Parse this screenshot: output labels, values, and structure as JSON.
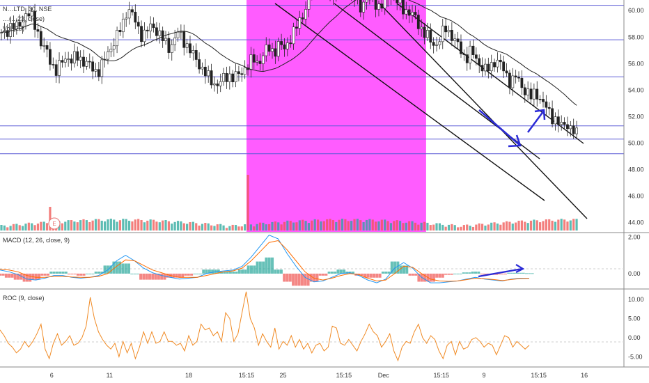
{
  "chart_data": [
    {
      "type": "candlestick",
      "pane": "price",
      "symbol_label": "N…LTD, 30, NSE",
      "indicator_labels": [
        "…(…23, close)",
        "Vol (20)"
      ],
      "y_ticks": [
        "60.00",
        "58.00",
        "56.00",
        "54.00",
        "52.00",
        "50.00",
        "48.00",
        "46.00",
        "44.00"
      ],
      "ylim": [
        43.3,
        60.8
      ],
      "horizontal_levels": [
        60.4,
        57.8,
        55.0,
        51.3,
        50.3,
        49.2
      ],
      "highlight_region": {
        "from_index": 81,
        "to_index": 140,
        "color": "#ff40ff"
      },
      "close_series": [
        58.1,
        58.4,
        59.0,
        58.6,
        59.2,
        59.9,
        59.4,
        58.7,
        57.4,
        56.8,
        56.0,
        55.4,
        56.1,
        56.6,
        56.2,
        56.5,
        56.3,
        56.0,
        55.6,
        55.4,
        55.9,
        56.7,
        57.5,
        58.1,
        58.9,
        60.3,
        59.6,
        58.7,
        58.1,
        58.5,
        58.9,
        58.4,
        57.8,
        57.2,
        57.6,
        58.3,
        57.9,
        57.2,
        56.6,
        56.1,
        55.5,
        54.9,
        54.6,
        54.4,
        54.8,
        55.2,
        54.9,
        55.1,
        55.6,
        55.9,
        56.3,
        56.1,
        56.7,
        57.2,
        56.9,
        57.4,
        57.1,
        57.8,
        58.3,
        59.2,
        59.9,
        61.0,
        61.6,
        62.1,
        61.7,
        61.2,
        61.6,
        62.2,
        61.9,
        61.4,
        60.9,
        60.4,
        60.6,
        61.2,
        60.7,
        60.2,
        60.6,
        61.4,
        60.9,
        60.3,
        60.1,
        59.8,
        59.4,
        58.8,
        58.2,
        57.7,
        57.4,
        57.9,
        58.7,
        58.3,
        57.6,
        57.0,
        56.4,
        56.9,
        56.4,
        55.9,
        55.4,
        55.8,
        56.4,
        55.8,
        55.2,
        54.6,
        55.0,
        54.4,
        53.9,
        53.4,
        53.9,
        53.2,
        52.6,
        52.1,
        51.7,
        51.2,
        51.6,
        51.0,
        50.6
      ],
      "x_ticks": [
        {
          "label": "6",
          "index": 17
        },
        {
          "label": "11",
          "index": 36
        },
        {
          "label": "18",
          "index": 62
        },
        {
          "label": "15:15",
          "index": 81
        },
        {
          "label": "25",
          "index": 93
        },
        {
          "label": "15:15",
          "index": 113
        },
        {
          "label": "Dec",
          "index": 126
        },
        {
          "label": "15:15",
          "index": 145
        },
        {
          "label": "9",
          "index": 159
        },
        {
          "label": "15:15",
          "index": 177
        },
        {
          "label": "16",
          "index": 192
        }
      ],
      "volume_spike": {
        "index": 81,
        "label": ""
      },
      "event_marker": "E",
      "annotations": [
        "descending channel lines",
        "blue arrows at channel bottom"
      ]
    },
    {
      "type": "line",
      "pane": "macd",
      "label": "MACD (12, 26, close, 9)",
      "y_ticks": [
        "2.00",
        "0.00"
      ],
      "ylim": [
        -0.8,
        2.2
      ],
      "macd": [
        0.2,
        0.1,
        -0.05,
        -0.3,
        -0.35,
        -0.25,
        -0.1,
        -0.1,
        -0.2,
        -0.25,
        -0.2,
        -0.1,
        0.2,
        0.7,
        1.0,
        0.7,
        0.3,
        0.05,
        -0.1,
        -0.2,
        -0.3,
        -0.25,
        -0.2,
        0.0,
        0.1,
        0.15,
        0.2,
        0.4,
        0.9,
        1.5,
        2.1,
        1.9,
        1.1,
        0.4,
        -0.2,
        -0.45,
        -0.4,
        -0.2,
        0.0,
        0.05,
        -0.1,
        -0.35,
        -0.5,
        -0.3,
        0.3,
        0.6,
        0.3,
        -0.2,
        -0.5,
        -0.5,
        -0.45,
        -0.4,
        -0.3,
        -0.2,
        -0.3,
        -0.35,
        -0.4,
        -0.3,
        -0.25,
        -0.25
      ],
      "signal": [
        0.25,
        0.2,
        0.1,
        -0.1,
        -0.2,
        -0.2,
        -0.15,
        -0.15,
        -0.18,
        -0.2,
        -0.2,
        -0.15,
        0.0,
        0.4,
        0.75,
        0.7,
        0.45,
        0.2,
        0.05,
        -0.1,
        -0.2,
        -0.2,
        -0.2,
        -0.1,
        0.0,
        0.1,
        0.15,
        0.3,
        0.7,
        1.2,
        1.7,
        1.8,
        1.3,
        0.7,
        0.1,
        -0.25,
        -0.35,
        -0.25,
        -0.1,
        0.0,
        -0.05,
        -0.25,
        -0.4,
        -0.35,
        0.0,
        0.4,
        0.35,
        0.0,
        -0.3,
        -0.4,
        -0.42,
        -0.4,
        -0.33,
        -0.25,
        -0.28,
        -0.32,
        -0.38,
        -0.32,
        -0.27,
        -0.26
      ],
      "annotations": [
        "blue arrow rising"
      ]
    },
    {
      "type": "line",
      "pane": "roc",
      "label": "ROC (9, close)",
      "y_ticks": [
        "10.00",
        "5.00",
        "0.00",
        "-5.00"
      ],
      "ylim": [
        -7.5,
        12.5
      ],
      "values": [
        2.0,
        0.5,
        -1.5,
        -2.5,
        -4.0,
        -3.0,
        -1.0,
        -2.5,
        -1.0,
        1.0,
        3.5,
        -3.0,
        -5.5,
        -1.5,
        1.0,
        -2.0,
        -1.0,
        0.5,
        -2.0,
        -1.5,
        0.0,
        3.0,
        10.5,
        5.0,
        1.5,
        -0.5,
        -2.0,
        -3.0,
        -1.5,
        -5.0,
        -1.0,
        -4.0,
        -1.5,
        -5.5,
        -2.5,
        1.5,
        -1.5,
        1.5,
        -1.5,
        -1.0,
        1.5,
        -1.0,
        -1.0,
        -2.0,
        -1.5,
        -3.5,
        0.5,
        -2.0,
        -1.0,
        3.5,
        2.0,
        2.5,
        0.5,
        1.5,
        -1.0,
        6.5,
        5.0,
        -1.0,
        1.0,
        6.5,
        12.0,
        5.0,
        2.5,
        -2.0,
        1.0,
        -1.0,
        -2.5,
        2.5,
        -3.0,
        -1.0,
        -2.0,
        0.5,
        -2.5,
        -0.5,
        -3.0,
        -1.5,
        -4.0,
        -2.0,
        -1.5,
        -3.5,
        -2.5,
        3.0,
        2.5,
        -1.5,
        -2.0,
        -0.5,
        -2.0,
        -3.5,
        -1.0,
        1.0,
        3.5,
        1.5,
        0.5,
        -2.5,
        -1.0,
        1.0,
        -3.5,
        -6.0,
        -2.5,
        -1.0,
        -1.5,
        1.5,
        3.5,
        0.0,
        -1.5,
        0.5,
        -0.5,
        -3.5,
        -5.5,
        -2.0,
        -1.0,
        -4.5,
        -1.0,
        -3.0,
        -2.5,
        -0.5,
        0.0,
        -1.0,
        -2.5,
        -1.5,
        -2.0,
        -4.5,
        -2.0,
        0.5,
        0.0,
        -2.5,
        -1.0,
        -2.0,
        -3.0,
        -2.0
      ]
    }
  ],
  "colors": {
    "level_line": "#5c5cd6",
    "highlight": "#ff40ff",
    "up": "#26a69a",
    "down": "#ef5350",
    "macd_line": "#2196f3",
    "signal_line": "#ff6d00",
    "roc_line": "#f08a24",
    "arrow": "#2a2ad6"
  }
}
